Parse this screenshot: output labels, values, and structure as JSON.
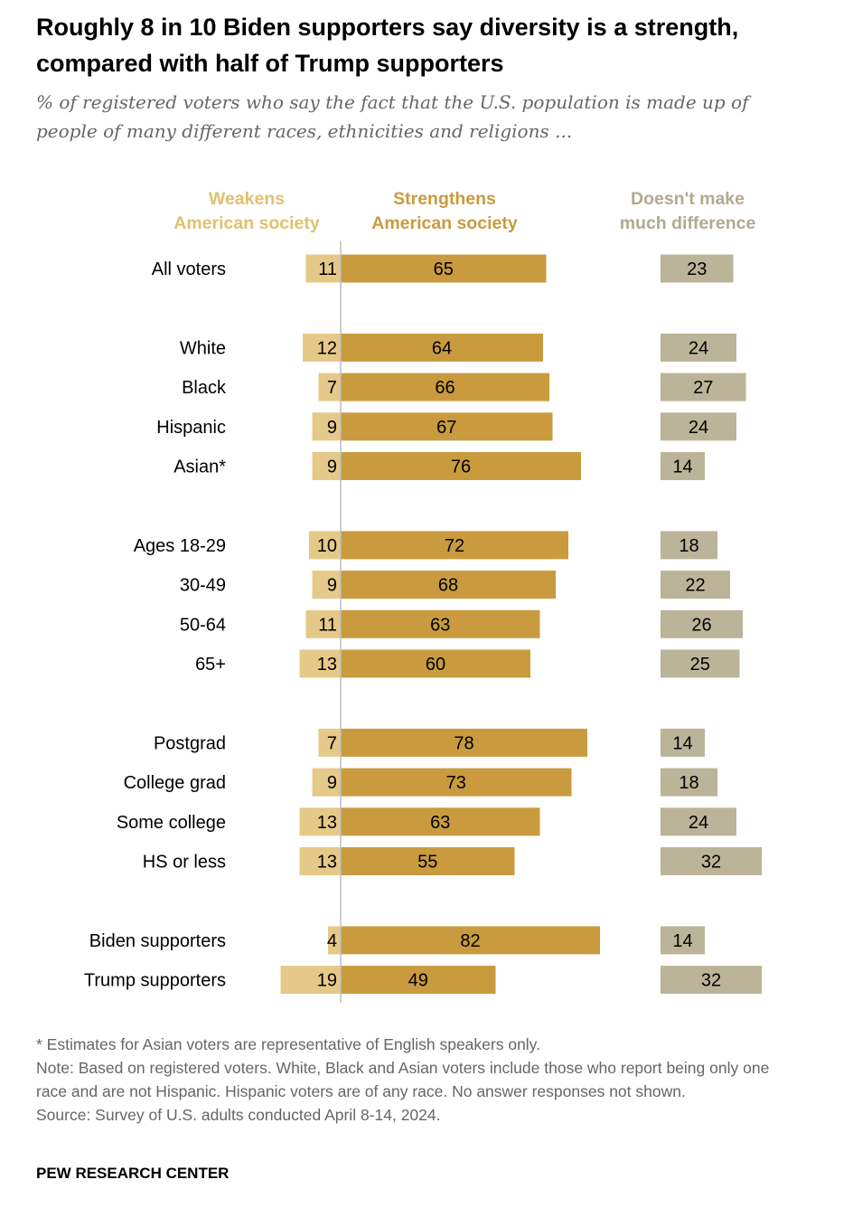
{
  "title": "Roughly 8 in 10 Biden supporters say diversity is a strength, compared with half of Trump supporters",
  "subtitle": "% of registered voters who say the fact that the U.S. population is made up of people of many different races, ethnicities and religions ...",
  "colors": {
    "weakens": "#e5c989",
    "strengthens": "#c99b3e",
    "no_difference": "#bcb499",
    "weakens_header": "#e0c070",
    "strengthens_header": "#c99b3e",
    "no_difference_header": "#b1aa91"
  },
  "chart_data": {
    "type": "bar",
    "columns": [
      {
        "key": "weakens",
        "label_lines": [
          "Weakens",
          "American society"
        ]
      },
      {
        "key": "strengthens",
        "label_lines": [
          "Strengthens",
          "American society"
        ]
      },
      {
        "key": "no_difference",
        "label_lines": [
          "Doesn't make",
          "much difference"
        ]
      }
    ],
    "groups": [
      [
        {
          "label": "All voters",
          "weakens": 11,
          "strengthens": 65,
          "no_difference": 23
        }
      ],
      [
        {
          "label": "White",
          "weakens": 12,
          "strengthens": 64,
          "no_difference": 24
        },
        {
          "label": "Black",
          "weakens": 7,
          "strengthens": 66,
          "no_difference": 27
        },
        {
          "label": "Hispanic",
          "weakens": 9,
          "strengthens": 67,
          "no_difference": 24
        },
        {
          "label": "Asian*",
          "weakens": 9,
          "strengthens": 76,
          "no_difference": 14
        }
      ],
      [
        {
          "label": "Ages 18-29",
          "weakens": 10,
          "strengthens": 72,
          "no_difference": 18
        },
        {
          "label": "30-49",
          "weakens": 9,
          "strengthens": 68,
          "no_difference": 22
        },
        {
          "label": "50-64",
          "weakens": 11,
          "strengthens": 63,
          "no_difference": 26
        },
        {
          "label": "65+",
          "weakens": 13,
          "strengthens": 60,
          "no_difference": 25
        }
      ],
      [
        {
          "label": "Postgrad",
          "weakens": 7,
          "strengthens": 78,
          "no_difference": 14
        },
        {
          "label": "College grad",
          "weakens": 9,
          "strengthens": 73,
          "no_difference": 18
        },
        {
          "label": "Some college",
          "weakens": 13,
          "strengthens": 63,
          "no_difference": 24
        },
        {
          "label": "HS or less",
          "weakens": 13,
          "strengthens": 55,
          "no_difference": 32
        }
      ],
      [
        {
          "label": "Biden supporters",
          "weakens": 4,
          "strengthens": 82,
          "no_difference": 14
        },
        {
          "label": "Trump supporters",
          "weakens": 19,
          "strengthens": 49,
          "no_difference": 32
        }
      ]
    ]
  },
  "notes": {
    "asterisk": "* Estimates for Asian voters are representative of English speakers only.",
    "note": "Note: Based on registered voters. White, Black and Asian voters include those who report being only one race and are not Hispanic. Hispanic voters are of any race. No answer responses not shown.",
    "source": "Source: Survey of U.S. adults conducted April 8-14, 2024."
  },
  "brand": "PEW RESEARCH CENTER"
}
